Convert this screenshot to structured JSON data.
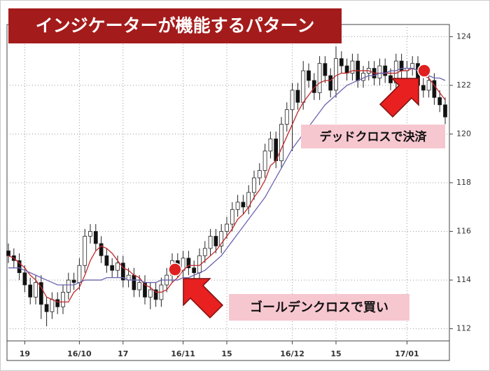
{
  "chart_data": {
    "type": "candlestick",
    "title": "インジケーターが機能するパターン",
    "annotations": [
      "デッドクロスで決済",
      "ゴールデンクロスで買い"
    ],
    "categories": [
      null,
      null,
      null,
      "19",
      null,
      null,
      null,
      null,
      null,
      null,
      null,
      null,
      null,
      "16/10",
      null,
      null,
      null,
      null,
      null,
      null,
      null,
      "17",
      null,
      null,
      null,
      null,
      null,
      null,
      null,
      null,
      null,
      null,
      "16/11",
      null,
      null,
      null,
      null,
      null,
      null,
      null,
      "15",
      null,
      null,
      null,
      null,
      null,
      null,
      null,
      null,
      null,
      null,
      null,
      "16/12",
      null,
      null,
      null,
      null,
      null,
      null,
      null,
      "15",
      null,
      null,
      null,
      null,
      null,
      null,
      null,
      null,
      null,
      null,
      null,
      null,
      "17/01",
      null,
      null,
      null,
      null,
      null,
      null,
      null
    ],
    "open": [
      115.2,
      115.0,
      114.8,
      114.3,
      113.8,
      113.3,
      113.9,
      113.0,
      112.7,
      113.2,
      112.9,
      113.5,
      114.0,
      113.9,
      114.6,
      115.8,
      116.0,
      115.5,
      115.0,
      114.6,
      114.4,
      114.7,
      114.0,
      114.2,
      113.6,
      113.9,
      113.3,
      113.6,
      113.2,
      113.8,
      114.2,
      114.8,
      114.4,
      114.9,
      114.5,
      114.3,
      115.0,
      115.3,
      115.8,
      115.4,
      116.0,
      116.3,
      116.9,
      117.2,
      117.0,
      117.6,
      118.2,
      118.5,
      119.3,
      119.8,
      118.9,
      120.4,
      121.0,
      121.8,
      121.3,
      122.6,
      122.2,
      121.7,
      122.9,
      122.4,
      121.8,
      123.1,
      122.8,
      122.5,
      123.0,
      122.2,
      122.5,
      122.7,
      122.3,
      122.8,
      122.4,
      122.1,
      123.0,
      122.6,
      122.7,
      122.9,
      122.0,
      121.8,
      122.2,
      121.5,
      121.2
    ],
    "high": [
      115.5,
      115.3,
      115.1,
      114.6,
      114.1,
      114.2,
      114.2,
      113.3,
      113.5,
      113.5,
      113.8,
      114.3,
      114.3,
      114.9,
      116.1,
      116.3,
      116.3,
      115.8,
      115.3,
      114.9,
      115.0,
      115.0,
      114.5,
      114.5,
      114.2,
      114.2,
      113.9,
      113.9,
      114.1,
      114.5,
      115.1,
      115.1,
      115.2,
      115.2,
      114.8,
      115.3,
      115.6,
      116.1,
      116.1,
      116.3,
      116.6,
      117.2,
      117.5,
      117.5,
      117.9,
      118.5,
      118.8,
      119.6,
      120.1,
      120.1,
      120.7,
      121.3,
      122.1,
      122.1,
      123.0,
      122.9,
      122.5,
      123.2,
      123.2,
      122.7,
      123.6,
      123.4,
      123.1,
      123.3,
      123.3,
      122.8,
      123.0,
      123.0,
      123.1,
      123.1,
      122.7,
      123.3,
      123.3,
      123.0,
      123.2,
      123.2,
      122.3,
      122.5,
      122.5,
      121.8,
      121.5
    ],
    "low": [
      114.7,
      114.5,
      114.0,
      113.5,
      113.0,
      113.0,
      112.4,
      112.1,
      112.4,
      112.6,
      112.6,
      113.2,
      113.6,
      113.6,
      114.3,
      115.5,
      115.2,
      114.7,
      114.3,
      114.1,
      114.1,
      113.7,
      113.7,
      113.3,
      113.3,
      113.0,
      112.8,
      112.9,
      112.9,
      113.5,
      113.9,
      114.1,
      114.1,
      114.2,
      113.7,
      114.0,
      114.7,
      115.0,
      115.1,
      115.1,
      115.7,
      116.0,
      116.6,
      116.7,
      116.7,
      117.3,
      117.9,
      118.2,
      119.0,
      118.6,
      118.6,
      120.1,
      119.3,
      121.0,
      121.0,
      121.9,
      121.4,
      121.4,
      122.1,
      121.5,
      121.5,
      122.5,
      122.2,
      122.2,
      121.9,
      121.9,
      122.2,
      122.0,
      122.0,
      122.1,
      121.8,
      121.8,
      122.3,
      122.3,
      122.4,
      121.7,
      121.5,
      121.5,
      121.2,
      120.9,
      120.4
    ],
    "close": [
      115.0,
      114.8,
      114.3,
      113.8,
      113.3,
      113.9,
      113.0,
      112.7,
      113.2,
      112.9,
      113.5,
      114.0,
      113.9,
      114.6,
      115.8,
      116.0,
      115.5,
      115.0,
      114.6,
      114.4,
      114.7,
      114.0,
      114.2,
      113.6,
      113.9,
      113.3,
      113.6,
      113.2,
      113.8,
      114.2,
      114.8,
      114.4,
      114.9,
      114.5,
      114.3,
      115.0,
      115.3,
      115.8,
      115.4,
      116.0,
      116.3,
      116.9,
      117.2,
      117.0,
      117.6,
      118.2,
      118.5,
      119.3,
      119.8,
      118.9,
      120.4,
      121.0,
      121.8,
      121.3,
      122.6,
      122.2,
      121.7,
      122.9,
      122.4,
      121.8,
      123.1,
      122.8,
      122.5,
      123.0,
      122.2,
      122.5,
      122.7,
      122.3,
      122.8,
      122.4,
      122.1,
      123.0,
      122.6,
      122.7,
      122.9,
      122.0,
      121.8,
      122.2,
      121.5,
      121.2,
      120.7
    ],
    "lines": [
      {
        "color": "#c0282a",
        "values": [
          115.0,
          114.9,
          114.7,
          114.5,
          114.2,
          114.0,
          113.7,
          113.3,
          113.2,
          113.1,
          113.1,
          113.1,
          113.5,
          113.7,
          114.2,
          114.8,
          115.2,
          115.4,
          115.3,
          115.1,
          114.8,
          114.5,
          114.4,
          114.2,
          114.1,
          113.8,
          113.7,
          113.5,
          113.5,
          113.6,
          113.9,
          114.1,
          114.4,
          114.6,
          114.6,
          114.6,
          114.8,
          115.0,
          115.2,
          115.5,
          115.8,
          116.1,
          116.5,
          116.7,
          117.0,
          117.4,
          117.7,
          118.1,
          118.7,
          118.9,
          119.4,
          119.9,
          120.4,
          120.9,
          121.3,
          121.6,
          121.9,
          122.1,
          122.2,
          122.2,
          122.4,
          122.5,
          122.5,
          122.6,
          122.6,
          122.6,
          122.6,
          122.5,
          122.5,
          122.5,
          122.5,
          122.5,
          122.6,
          122.6,
          122.7,
          122.6,
          122.4,
          122.3,
          122.0,
          121.7,
          121.4
        ]
      },
      {
        "color": "#6a63b0",
        "values": [
          114.5,
          114.5,
          114.5,
          114.4,
          114.3,
          114.2,
          114.1,
          114.0,
          113.9,
          113.8,
          113.8,
          113.8,
          113.8,
          113.9,
          114.0,
          114.0,
          114.0,
          114.0,
          114.1,
          114.1,
          114.1,
          114.1,
          114.0,
          114.0,
          114.0,
          113.9,
          113.9,
          113.9,
          114.0,
          114.0,
          114.0,
          114.0,
          114.1,
          114.1,
          114.2,
          114.3,
          114.4,
          114.6,
          114.8,
          115.0,
          115.3,
          115.6,
          115.9,
          116.2,
          116.5,
          116.8,
          117.1,
          117.4,
          117.8,
          118.2,
          118.6,
          119.0,
          119.4,
          119.7,
          120.0,
          120.3,
          120.6,
          120.9,
          121.2,
          121.4,
          121.6,
          121.8,
          122.0,
          122.1,
          122.2,
          122.3,
          122.4,
          122.4,
          122.5,
          122.5,
          122.6,
          122.6,
          122.7,
          122.7,
          122.7,
          122.6,
          122.5,
          122.4,
          122.3,
          122.3,
          122.2
        ]
      }
    ],
    "ylim": [
      111.5,
      124.5
    ],
    "yticks": [
      112,
      114,
      116,
      118,
      120,
      122,
      124
    ],
    "grid": true
  }
}
